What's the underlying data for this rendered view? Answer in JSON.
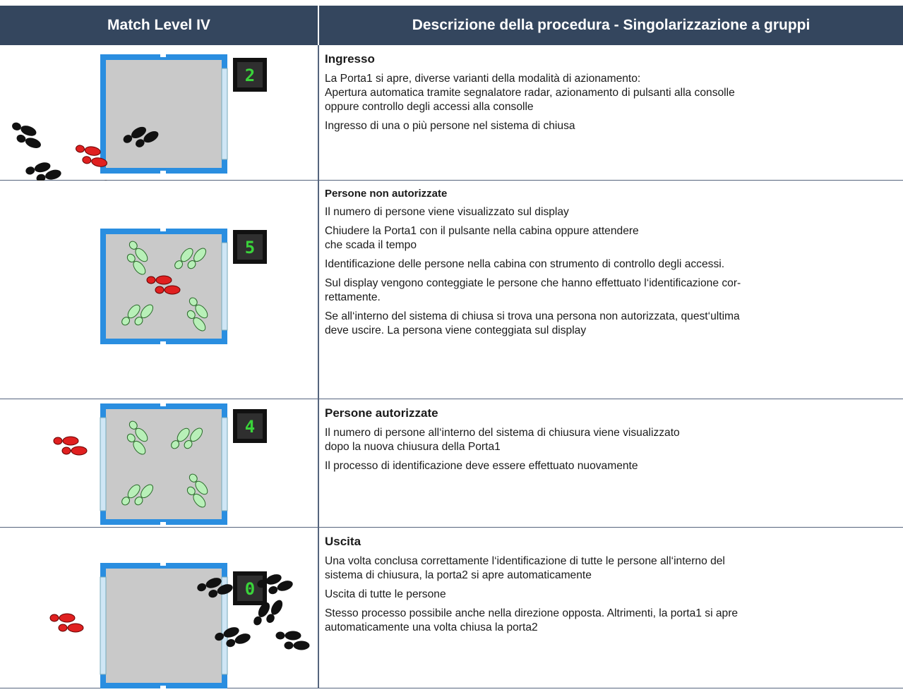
{
  "table": {
    "header": [
      "Match Level IV",
      "Descrizione della procedura - Singolarizzazione a gruppi"
    ],
    "rows": [
      {
        "display": "2",
        "title": "Ingresso",
        "paragraphs": [
          "La Porta1 si apre, diverse varianti della modalità di azionamento:\nApertura automatica tramite segnalatore radar, azionamento di pulsanti alla consolle\noppure controllo degli accessi alla consolle",
          "Ingresso di una o più persone nel sistema di chiusa"
        ]
      },
      {
        "display": "5",
        "title": "Persone non autorizzate",
        "paragraphs": [
          "Il numero di persone viene visualizzato sul display",
          "Chiudere la Porta1 con il pulsante nella cabina oppure attendere\nche scada il tempo",
          "Identificazione delle persone nella cabina con strumento di controllo degli accessi.",
          "Sul display vengono conteggiate le persone che hanno effettuato l‘identificazione cor-\nrettamente.",
          "Se all‘interno del sistema di chiusa si trova una persona non autorizzata, quest‘ultima\ndeve uscire. La persona viene conteggiata sul display"
        ]
      },
      {
        "display": "4",
        "title": "Persone autorizzate",
        "paragraphs": [
          "Il numero di persone all‘interno del sistema di chiusura viene visualizzato\ndopo la nuova chiusura della Porta1",
          "Il processo di identificazione deve essere effettuato nuovamente"
        ]
      },
      {
        "display": "0",
        "title": "Uscita",
        "paragraphs": [
          "Una volta conclusa correttamente l‘identificazione di tutte le persone all‘interno del\nsistema di chiusura, la porta2 si apre automaticamente",
          "Uscita di tutte le persone",
          "Stesso processo possibile anche nella direzione opposta. Altrimenti, la porta1 si apre\nautomaticamente una volta chiusa la porta2"
        ]
      }
    ]
  }
}
